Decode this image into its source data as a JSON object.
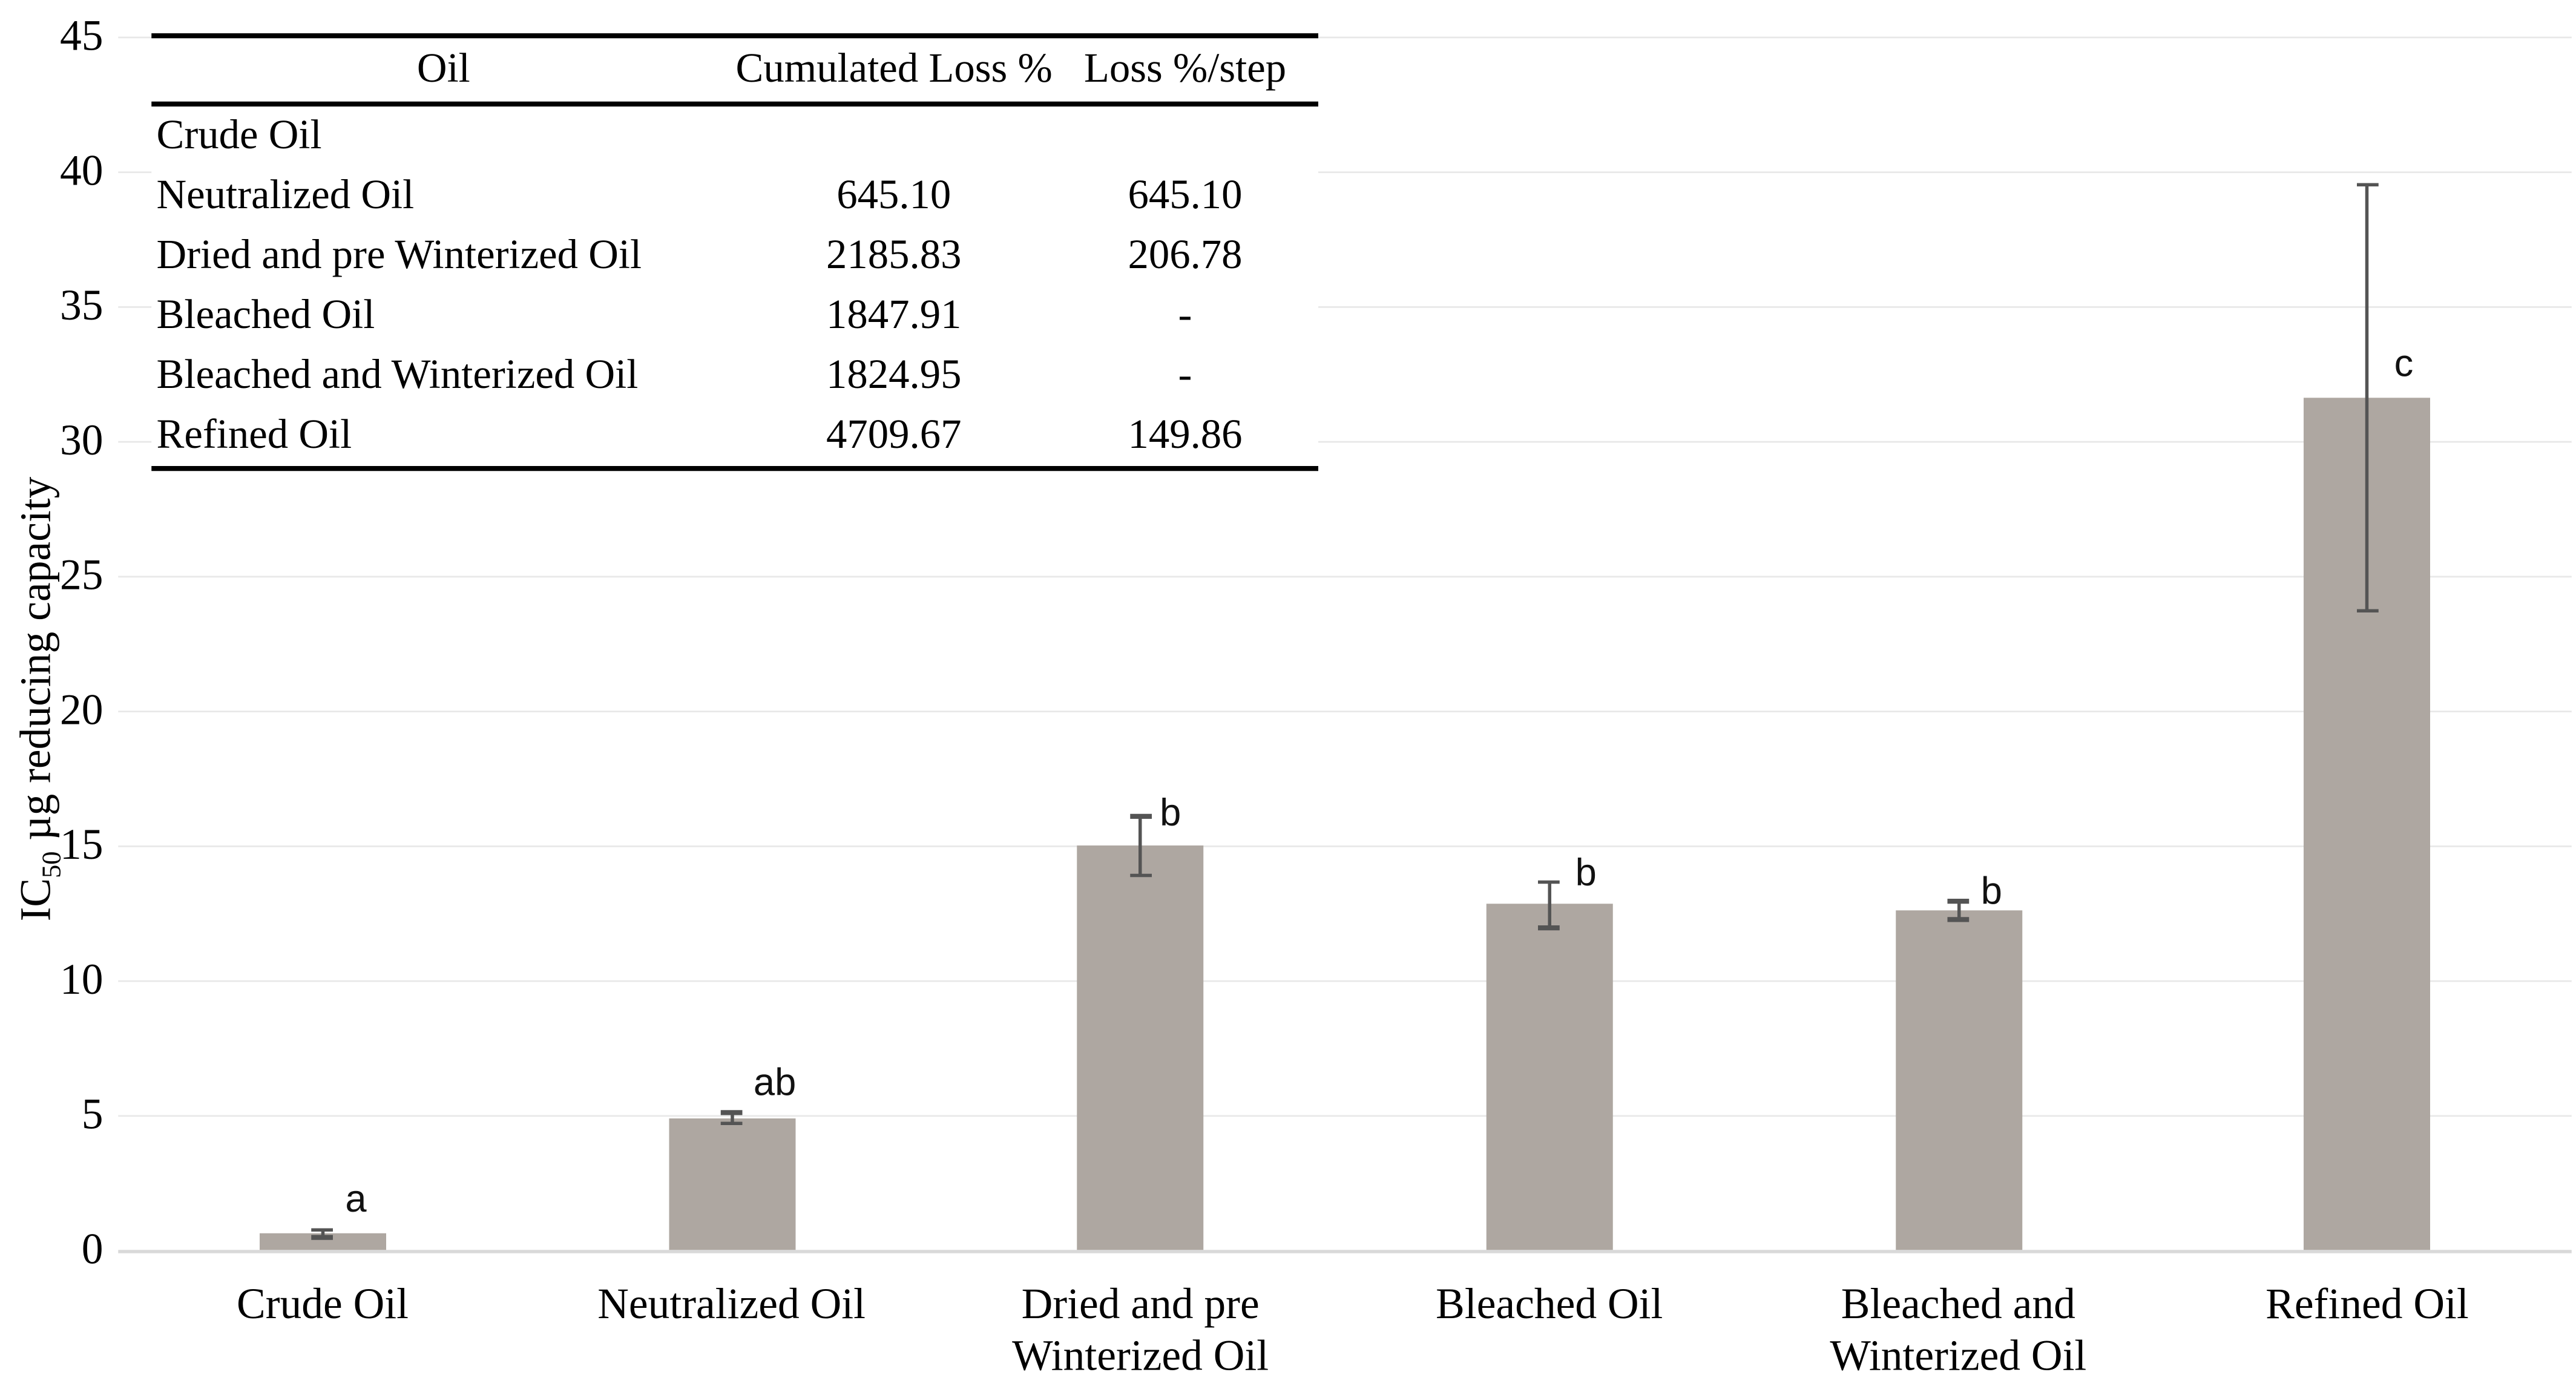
{
  "chart_data": {
    "type": "bar",
    "title": "",
    "categories": [
      "Crude Oil",
      "Neutralized Oil",
      "Dried and pre Winterized Oil",
      "Bleached Oil",
      "Bleached and Winterized Oil",
      "Refined Oil"
    ],
    "values": [
      0.6,
      4.9,
      15.0,
      12.8,
      12.6,
      31.6
    ],
    "error_low": [
      0.48,
      4.7,
      13.9,
      11.95,
      12.25,
      23.7
    ],
    "error_high": [
      0.75,
      5.1,
      16.1,
      13.65,
      12.95,
      39.5
    ],
    "sig_letters": [
      "a",
      "ab",
      "b",
      "b",
      "b",
      "c"
    ],
    "xlabel": "",
    "ylabel": "IC50 µg reducing capacity",
    "ylim": [
      0,
      45
    ],
    "ytick_step": 5,
    "grid": "horizontal-major",
    "legend": "none",
    "bar_color": "#aea7a1"
  },
  "y_axis": {
    "title_prefix": "IC",
    "title_sub": "50",
    "title_suffix": " µg reducing capacity",
    "tick_labels": [
      "0",
      "5",
      "10",
      "15",
      "20",
      "25",
      "30",
      "35",
      "40",
      "45"
    ]
  },
  "categories_ui": [
    {
      "lines": [
        "Crude Oil"
      ],
      "letter": "a",
      "letter_y": 1.9,
      "letter_dx": 20
    },
    {
      "lines": [
        "Neutralized Oil"
      ],
      "letter": "ab",
      "letter_y": 6.2,
      "letter_dx": 26
    },
    {
      "lines": [
        "Dried and pre",
        "Winterized Oil"
      ],
      "letter": "b",
      "letter_y": 16.2,
      "letter_dx": 18
    },
    {
      "lines": [
        "Bleached Oil"
      ],
      "letter": "b",
      "letter_y": 14.0,
      "letter_dx": 22
    },
    {
      "lines": [
        "Bleached and",
        "Winterized Oil"
      ],
      "letter": "b",
      "letter_y": 13.3,
      "letter_dx": 20
    },
    {
      "lines": [
        "Refined Oil"
      ],
      "letter": "c",
      "letter_y": 32.9,
      "letter_dx": 22
    }
  ],
  "table": {
    "headers": [
      "Oil",
      "Cumulated Loss %",
      "Loss %/step"
    ],
    "rows": [
      [
        "Crude Oil",
        "",
        ""
      ],
      [
        "Neutralized Oil",
        "645.10",
        "645.10"
      ],
      [
        "Dried and pre Winterized Oil",
        "2185.83",
        "206.78"
      ],
      [
        "Bleached Oil",
        "1847.91",
        "-"
      ],
      [
        "Bleached and Winterized Oil",
        "1824.95",
        "-"
      ],
      [
        "Refined Oil",
        "4709.67",
        "149.86"
      ]
    ]
  },
  "colors": {
    "bar": "#aea7a1",
    "error_bar": "#545454",
    "gridline": "#e8e8e8",
    "axis_line": "#d9d9d9",
    "letter": "#111111",
    "table_border": "#000000",
    "text": "#000000"
  }
}
